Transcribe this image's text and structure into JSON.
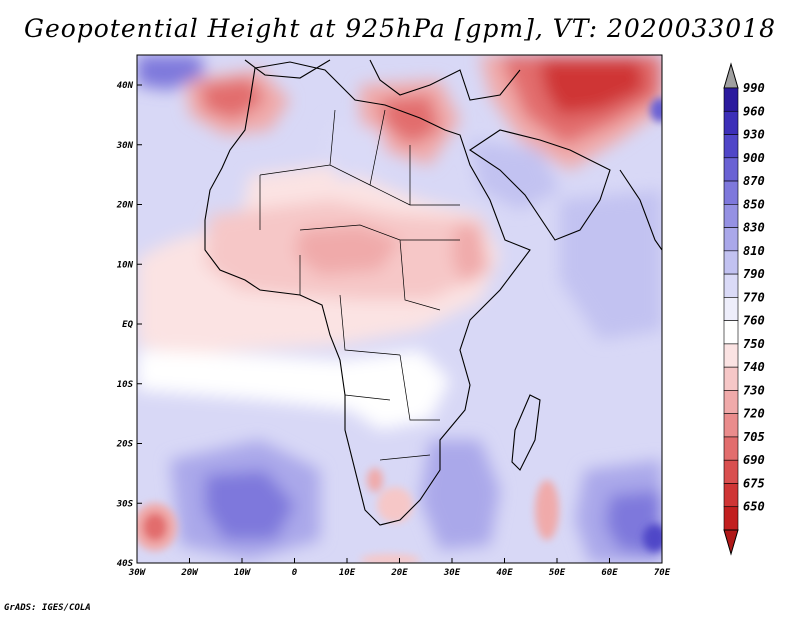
{
  "title": "Geopotential Height at 925hPa [gpm], VT: 2020033018",
  "credit": "GrADS: IGES/COLA",
  "lon_labels": [
    "30W",
    "20W",
    "10W",
    "0",
    "10E",
    "20E",
    "30E",
    "40E",
    "50E",
    "60E",
    "70E"
  ],
  "lat_labels": [
    "40N",
    "30N",
    "20N",
    "10N",
    "EQ",
    "10S",
    "20S",
    "30S",
    "40S"
  ],
  "colorbar": {
    "levels": [
      "990",
      "960",
      "930",
      "900",
      "870",
      "850",
      "830",
      "810",
      "790",
      "770",
      "760",
      "750",
      "740",
      "730",
      "720",
      "705",
      "690",
      "675",
      "650"
    ],
    "colors": [
      "#2b1a9e",
      "#3c2fb8",
      "#5046c8",
      "#6a62d4",
      "#7e78dc",
      "#9591e3",
      "#aaa8ea",
      "#c2c2f1",
      "#dadaf7",
      "#eeeefb",
      "#ffffff",
      "#fbe3e3",
      "#f6c7c7",
      "#f0aaaa",
      "#ea8c8c",
      "#e26d6d",
      "#d94f4f",
      "#cf3535",
      "#c21f1f"
    ],
    "top_arrow_color": "#a0a0a0",
    "bottom_arrow_color": "#b01818"
  },
  "background_color": "#d8d8f6"
}
